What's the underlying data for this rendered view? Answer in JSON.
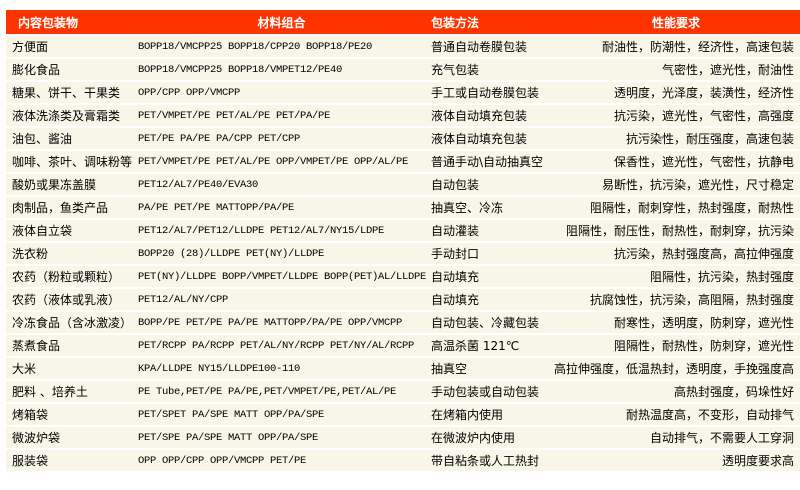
{
  "colors": {
    "header_bg": "#ff3300",
    "row_bg": "#f8f6e6"
  },
  "headers": [
    "内容包装物",
    "材料组合",
    "包装方法",
    "性能要求"
  ],
  "rows": [
    [
      "方便面",
      "BOPP18/VMCPP25  BOPP18/CPP20  BOPP18/PE20",
      "普通自动卷膜包装",
      "耐油性，防潮性，经济性，高速包装"
    ],
    [
      "膨化食品",
      "BOPP18/VMCPP25  BOPP18/VMPET12/PE40",
      "充气包装",
      "气密性，遮光性，耐油性"
    ],
    [
      "糖果、饼干、干果类",
      "OPP/CPP OPP/VMCPP",
      "手工或自动卷膜包装",
      "透明度，光泽度，装潢性，经济性"
    ],
    [
      "液体洗涤类及膏霜类",
      "PET/VMPET/PE PET/AL/PE  PET/PA/PE",
      "液体自动填充包装",
      "抗污染，遮光性，气密性，高强度"
    ],
    [
      "油包、酱油",
      "PET/PE  PA/PE PA/CPP PET/CPP",
      "液体自动填充包装",
      "抗污染性，耐压强度，高速包装"
    ],
    [
      "咖啡、茶叶、调味粉等",
      "PET/VMPET/PE PET/AL/PE OPP/VMPET/PE OPP/AL/PE",
      "普通手动\\自动抽真空",
      "保香性，遮光性，气密性，抗静电"
    ],
    [
      "酸奶或果冻盖膜",
      "PET12/AL7/PE40/EVA30",
      "自动包装",
      "易断性，抗污染，遮光性，尺寸稳定"
    ],
    [
      "肉制品，鱼类产品",
      "PA/PE PET/PE MATTOPP/PA/PE",
      "抽真空、冷冻",
      "阻隔性，耐刺穿性，热封强度，耐热性"
    ],
    [
      "液体自立袋",
      "PET12/AL7/PET12/LLDPE PET12/AL7/NY15/LDPE",
      "自动灌装",
      "阻隔性，耐压性，耐热性，耐刺穿，抗污染"
    ],
    [
      "洗衣粉",
      "BOPP20 (28)/LLDPE PET(NY)/LLDPE",
      "手动封口",
      "抗污染，热封强度高，高拉伸强度"
    ],
    [
      "农药（粉粒或颗粒）",
      "PET(NY)/LLDPE BOPP/VMPET/LLDPE BOPP(PET)AL/LLDPE",
      "自动填充",
      "阻隔性，抗污染，热封强度"
    ],
    [
      "农药（液体或乳液）",
      "PET12/AL/NY/CPP",
      "自动填充",
      "抗腐蚀性，抗污染，高阻隔，热封强度"
    ],
    [
      "冷冻食品（含冰激凌）",
      "BOPP/PE PET/PE PA/PE MATTOPP/PA/PE OPP/VMCPP",
      "自动包装、冷藏包装",
      "耐寒性，透明度，防刺穿，遮光性"
    ],
    [
      "蒸煮食品",
      "PET/RCPP PA/RCPP PET/AL/NY/RCPP PET/NY/AL/RCPP",
      "高温杀菌 121℃",
      "阻隔性，耐热性，防刺穿，遮光性"
    ],
    [
      "大米",
      "KPA/LLDPE NY15/LLDPE100-110",
      "抽真空",
      "高拉伸强度，低温热封，透明度，手挽强度高"
    ],
    [
      "肥料 、培养土",
      "PE Tube,PET/PE  PA/PE,PET/VMPET/PE,PET/AL/PE",
      "手动包装或自动包装",
      "高热封强度，码垛性好"
    ],
    [
      "烤箱袋",
      "PET/SPET PA/SPE MATT OPP/PA/SPE",
      "在烤箱内使用",
      "耐热温度高，不变形，自动排气"
    ],
    [
      "微波炉袋",
      "PET/SPE PA/SPE MATT OPP/PA/SPE",
      "在微波炉内使用",
      "自动排气，不需要人工穿洞"
    ],
    [
      "服装袋",
      "OPP  OPP/CPP OPP/VMCPP PET/PE",
      "带自粘条或人工热封",
      "透明度要求高"
    ]
  ]
}
